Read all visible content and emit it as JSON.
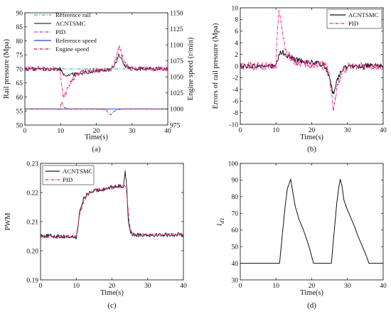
{
  "chart_data": [
    {
      "id": "a",
      "type": "line",
      "panel_label": "(a)",
      "xlabel": "Time(s)",
      "ylabel": "Rail pressure (Mpa)",
      "y2label": "Engine speed (r/min)",
      "xlim": [
        0,
        40
      ],
      "ylim": [
        50,
        90
      ],
      "y2lim": [
        975,
        1150
      ],
      "xticks": [
        0,
        10,
        20,
        30,
        40
      ],
      "yticks": [
        50,
        55,
        60,
        65,
        70,
        75,
        80,
        85,
        90
      ],
      "y2ticks": [
        975,
        1000,
        1025,
        1050,
        1075,
        1100,
        1125,
        1150
      ],
      "legend_position": "top-center",
      "series": [
        {
          "name": "Reference rail",
          "axis": "y",
          "color": "#19b7b0",
          "dash": "5,2,1.5,2",
          "width": 1.0,
          "x": [
            0,
            10,
            10.3,
            40
          ],
          "y": [
            70,
            70,
            70,
            70
          ]
        },
        {
          "name": "ACNTSMC",
          "axis": "y",
          "color": "#333333",
          "dash": "",
          "width": 1.0,
          "noise": 0.7,
          "x": [
            0,
            9.9,
            10.2,
            10.8,
            12,
            15,
            18,
            20,
            22,
            23.5,
            24.5,
            25.5,
            26.2,
            27,
            28,
            29.5,
            31,
            40
          ],
          "y": [
            70,
            70,
            69.5,
            68.2,
            67.8,
            68.3,
            69,
            69.3,
            69.5,
            69.8,
            70.5,
            72.2,
            75,
            73.5,
            71.2,
            70.2,
            70,
            70
          ]
        },
        {
          "name": "PID",
          "axis": "y",
          "color": "#e8208a",
          "dash": "4,1.5,1,1.5",
          "width": 1.0,
          "noise": 0.9,
          "x": [
            0,
            9.9,
            10.3,
            10.8,
            11.5,
            12.5,
            14,
            16,
            18,
            20,
            22,
            24,
            25,
            25.7,
            26.3,
            27,
            28,
            29.5,
            31,
            40
          ],
          "y": [
            70,
            70,
            64,
            60,
            61.5,
            64.5,
            67.5,
            69,
            69.5,
            69.5,
            69.5,
            69.5,
            71.5,
            75,
            78,
            75.5,
            72,
            70.3,
            70,
            70
          ]
        },
        {
          "name": "Reference speed",
          "axis": "y2",
          "color": "#2a3cd6",
          "dash": "",
          "width": 1.0,
          "x": [
            0,
            40
          ],
          "y": [
            1000,
            1000
          ]
        },
        {
          "name": "Engine speed",
          "axis": "y2",
          "color": "#a8242c",
          "dash": "4,1.5,1,1.5",
          "width": 1.0,
          "noise": 0.4,
          "x": [
            0,
            9.9,
            10.3,
            10.8,
            11.5,
            12.5,
            14,
            20,
            22.8,
            23.3,
            24,
            24.5,
            25.2,
            26,
            27,
            40
          ],
          "y": [
            1000,
            1000,
            1012,
            1004,
            1001,
            1000,
            1000,
            1000,
            999,
            993,
            991,
            994,
            997,
            999,
            1000,
            1000
          ]
        }
      ]
    },
    {
      "id": "b",
      "type": "line",
      "panel_label": "(b)",
      "xlabel": "Time(s)",
      "ylabel": "Errors of rail pressure (Mpa)",
      "xlim": [
        0,
        40
      ],
      "ylim": [
        -10,
        10
      ],
      "xticks": [
        0,
        10,
        20,
        30,
        40
      ],
      "yticks": [
        -10,
        -8,
        -6,
        -4,
        -2,
        0,
        2,
        4,
        6,
        8,
        10
      ],
      "legend_position": "top-right",
      "series": [
        {
          "name": "ACNTSMC",
          "color": "#111111",
          "dash": "",
          "width": 1.0,
          "noise": 0.45,
          "x": [
            0,
            10,
            10.5,
            11.2,
            12,
            13,
            15,
            18,
            20,
            22,
            23.5,
            24.5,
            25.2,
            26,
            26.5,
            27.5,
            28.5,
            30,
            32,
            40
          ],
          "y": [
            0,
            0,
            1.2,
            2.2,
            2.3,
            1.9,
            1.2,
            0.8,
            0.6,
            0.4,
            0.1,
            -1,
            -2.8,
            -4.8,
            -3.6,
            -1.8,
            -0.6,
            -0.1,
            0,
            0
          ]
        },
        {
          "name": "PID",
          "color": "#e8208a",
          "dash": "4,1.5,1,1.5",
          "width": 1.0,
          "noise": 0.7,
          "x": [
            0,
            10,
            10.3,
            10.8,
            11.3,
            11.9,
            12.6,
            13.5,
            15,
            18,
            20,
            22,
            24,
            25,
            25.6,
            26,
            26.6,
            27.5,
            29,
            31,
            40
          ],
          "y": [
            0,
            0,
            5.5,
            9.2,
            8.2,
            5.5,
            3,
            1.8,
            0.8,
            0.4,
            0.3,
            0.2,
            0,
            -2,
            -5,
            -8,
            -6,
            -2.6,
            -0.6,
            0,
            0
          ]
        }
      ]
    },
    {
      "id": "c",
      "type": "line",
      "panel_label": "(c)",
      "xlabel": "Time(s)",
      "ylabel": "PWM",
      "xlim": [
        0,
        40
      ],
      "ylim": [
        0.19,
        0.23
      ],
      "xticks": [
        0,
        10,
        20,
        30,
        40
      ],
      "yticks": [
        0.19,
        0.2,
        0.21,
        0.22,
        0.23
      ],
      "ytick_labels": [
        "0.19",
        "0.20",
        "0.21",
        "0.22",
        "0.23"
      ],
      "legend_position": "top-left",
      "series": [
        {
          "name": "ACNTSMC",
          "color": "#222222",
          "dash": "",
          "width": 1.0,
          "noise": 0.0007,
          "x": [
            0,
            10,
            10.4,
            10.6,
            11,
            12,
            13,
            15,
            18,
            20,
            22,
            23.2,
            23.7,
            24.1,
            24.6,
            25.2,
            26,
            40
          ],
          "y": [
            0.2052,
            0.2047,
            0.2065,
            0.21,
            0.2135,
            0.2175,
            0.2195,
            0.2205,
            0.2213,
            0.2218,
            0.2222,
            0.2222,
            0.2275,
            0.2225,
            0.21,
            0.2065,
            0.2055,
            0.2055
          ]
        },
        {
          "name": "PID",
          "color": "#e8208a",
          "dash": "4,1.5,1,1.5",
          "width": 1.0,
          "noise": 0.0004,
          "x": [
            0,
            10,
            10.5,
            11,
            12,
            13,
            14,
            16,
            18,
            20,
            22,
            23.5,
            24,
            24.5,
            25,
            26,
            40
          ],
          "y": [
            0.205,
            0.205,
            0.209,
            0.2125,
            0.2165,
            0.219,
            0.2202,
            0.221,
            0.2215,
            0.2218,
            0.222,
            0.2222,
            0.2208,
            0.215,
            0.208,
            0.2055,
            0.2055
          ]
        }
      ]
    },
    {
      "id": "d",
      "type": "line",
      "panel_label": "(d)",
      "xlabel": "Time(s)",
      "ylabel": "l_d1",
      "ylabel_main": "l",
      "ylabel_sub": "d1",
      "xlim": [
        0,
        40
      ],
      "ylim": [
        30,
        100
      ],
      "xticks": [
        0,
        10,
        20,
        30,
        40
      ],
      "yticks": [
        30,
        40,
        50,
        60,
        70,
        80,
        90,
        100
      ],
      "series": [
        {
          "name": "",
          "color": "#111111",
          "dash": "",
          "width": 1.0,
          "x": [
            0,
            11,
            11.8,
            12.6,
            13.2,
            13.7,
            14.1,
            14.6,
            15.4,
            16.5,
            17.5,
            18.5,
            19.5,
            20.5,
            25.5,
            26.2,
            27,
            27.6,
            28,
            28.5,
            29,
            30,
            31,
            32,
            33,
            34,
            35,
            36,
            40
          ],
          "y": [
            40,
            40,
            58,
            75,
            85,
            88,
            90.5,
            84,
            74,
            66,
            61,
            55,
            48,
            40,
            40,
            57,
            76,
            86,
            90.5,
            86,
            78,
            72,
            67,
            62,
            56,
            51,
            46,
            40,
            40
          ]
        }
      ]
    }
  ]
}
